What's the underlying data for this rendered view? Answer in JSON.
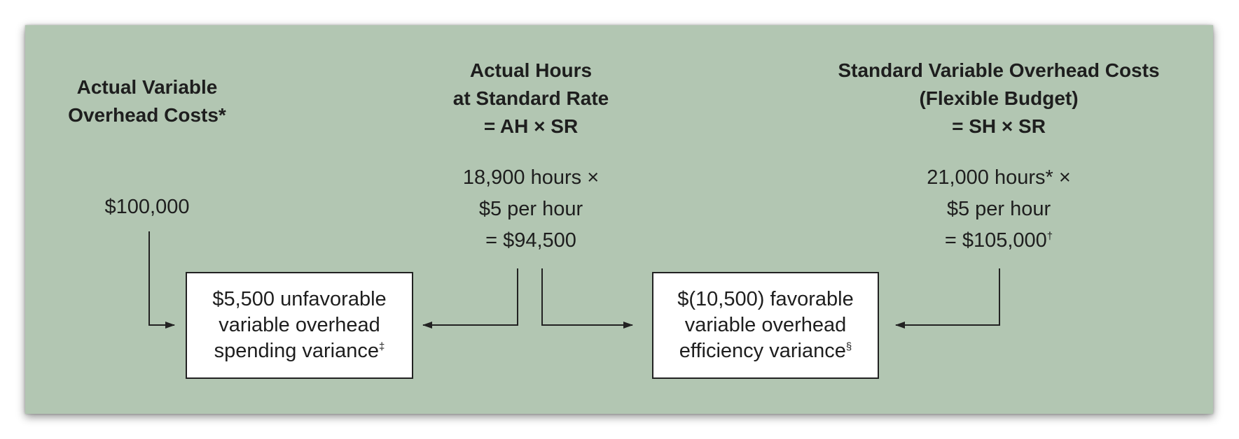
{
  "columns": {
    "actual": {
      "heading": [
        "Actual  Variable",
        "Overhead Costs*"
      ],
      "calc": [
        "$100,000"
      ]
    },
    "ah_sr": {
      "heading": [
        "Actual Hours",
        "at Standard Rate",
        "= AH × SR"
      ],
      "calc": [
        "18,900 hours ×",
        "$5 per hour",
        "=  $94,500"
      ]
    },
    "sh_sr": {
      "heading": [
        "Standard Variable Overhead Costs",
        "(Flexible Budget)",
        "= SH × SR"
      ],
      "calc": [
        "21,000 hours* ×",
        "$5 per hour",
        "=  $105,000"
      ],
      "calc_mark": "†"
    }
  },
  "variances": {
    "spending": {
      "lines": [
        "$5,500 unfavorable",
        "variable overhead",
        "spending variance"
      ],
      "mark": "‡"
    },
    "efficiency": {
      "lines": [
        "$(10,500) favorable",
        "variable overhead",
        "efficiency variance"
      ],
      "mark": "§"
    }
  },
  "colors": {
    "panel": "#b2c6b2",
    "line": "#222222",
    "box": "#ffffff"
  }
}
